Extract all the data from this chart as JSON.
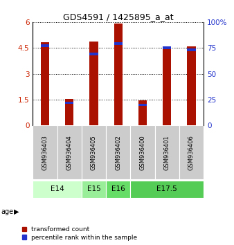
{
  "title": "GDS4591 / 1425895_a_at",
  "samples": [
    "GSM936403",
    "GSM936404",
    "GSM936405",
    "GSM936402",
    "GSM936400",
    "GSM936401",
    "GSM936406"
  ],
  "transformed_counts": [
    4.85,
    1.55,
    4.88,
    5.93,
    1.47,
    4.52,
    4.57
  ],
  "percentile_ranks": [
    77,
    22,
    69,
    79,
    20,
    75,
    73
  ],
  "age_groups": [
    {
      "label": "E14",
      "samples": [
        0,
        1
      ],
      "color": "#ccffcc"
    },
    {
      "label": "E15",
      "samples": [
        2
      ],
      "color": "#99ee99"
    },
    {
      "label": "E16",
      "samples": [
        3
      ],
      "color": "#66dd66"
    },
    {
      "label": "E17.5",
      "samples": [
        4,
        5,
        6
      ],
      "color": "#55cc55"
    }
  ],
  "ylim_left": [
    0,
    6
  ],
  "ylim_right": [
    0,
    100
  ],
  "yticks_left": [
    0,
    1.5,
    3,
    4.5,
    6
  ],
  "ytick_labels_left": [
    "0",
    "1.5",
    "3",
    "4.5",
    "6"
  ],
  "yticks_right": [
    0,
    25,
    50,
    75,
    100
  ],
  "ytick_labels_right": [
    "0",
    "25",
    "50",
    "75",
    "100%"
  ],
  "bar_color_red": "#aa1100",
  "bar_color_blue": "#2233cc",
  "bar_width": 0.35,
  "background_color": "#ffffff",
  "plot_bg_color": "#ffffff"
}
